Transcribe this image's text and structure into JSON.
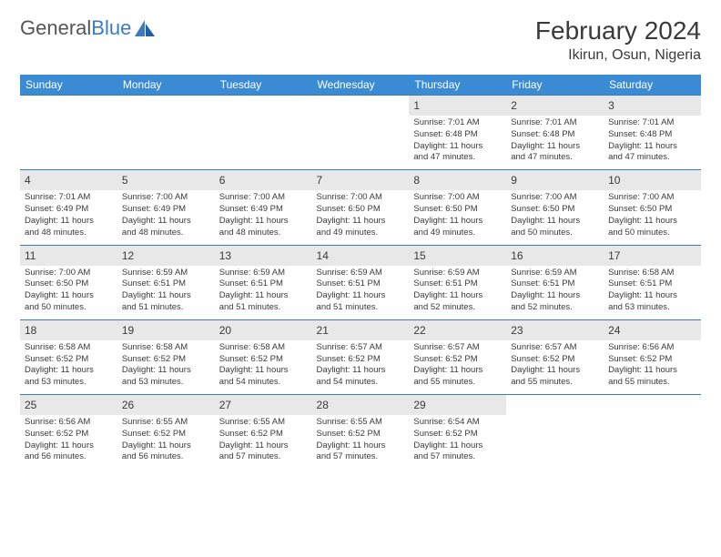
{
  "logo": {
    "first": "General",
    "second": "Blue"
  },
  "title": "February 2024",
  "location": "Ikirun, Osun, Nigeria",
  "colors": {
    "header_bg": "#3b8bd4",
    "header_text": "#ffffff",
    "row_border": "#3b7bbf",
    "daynum_bg": "#e8e8e8",
    "text": "#3a3a3a",
    "logo_gray": "#555555",
    "logo_blue": "#3b7bbf",
    "page_bg": "#ffffff"
  },
  "day_headers": [
    "Sunday",
    "Monday",
    "Tuesday",
    "Wednesday",
    "Thursday",
    "Friday",
    "Saturday"
  ],
  "weeks": [
    [
      {
        "blank": true
      },
      {
        "blank": true
      },
      {
        "blank": true
      },
      {
        "blank": true
      },
      {
        "n": "1",
        "sr": "Sunrise: 7:01 AM",
        "ss": "Sunset: 6:48 PM",
        "dl1": "Daylight: 11 hours",
        "dl2": "and 47 minutes."
      },
      {
        "n": "2",
        "sr": "Sunrise: 7:01 AM",
        "ss": "Sunset: 6:48 PM",
        "dl1": "Daylight: 11 hours",
        "dl2": "and 47 minutes."
      },
      {
        "n": "3",
        "sr": "Sunrise: 7:01 AM",
        "ss": "Sunset: 6:48 PM",
        "dl1": "Daylight: 11 hours",
        "dl2": "and 47 minutes."
      }
    ],
    [
      {
        "n": "4",
        "sr": "Sunrise: 7:01 AM",
        "ss": "Sunset: 6:49 PM",
        "dl1": "Daylight: 11 hours",
        "dl2": "and 48 minutes."
      },
      {
        "n": "5",
        "sr": "Sunrise: 7:00 AM",
        "ss": "Sunset: 6:49 PM",
        "dl1": "Daylight: 11 hours",
        "dl2": "and 48 minutes."
      },
      {
        "n": "6",
        "sr": "Sunrise: 7:00 AM",
        "ss": "Sunset: 6:49 PM",
        "dl1": "Daylight: 11 hours",
        "dl2": "and 48 minutes."
      },
      {
        "n": "7",
        "sr": "Sunrise: 7:00 AM",
        "ss": "Sunset: 6:50 PM",
        "dl1": "Daylight: 11 hours",
        "dl2": "and 49 minutes."
      },
      {
        "n": "8",
        "sr": "Sunrise: 7:00 AM",
        "ss": "Sunset: 6:50 PM",
        "dl1": "Daylight: 11 hours",
        "dl2": "and 49 minutes."
      },
      {
        "n": "9",
        "sr": "Sunrise: 7:00 AM",
        "ss": "Sunset: 6:50 PM",
        "dl1": "Daylight: 11 hours",
        "dl2": "and 50 minutes."
      },
      {
        "n": "10",
        "sr": "Sunrise: 7:00 AM",
        "ss": "Sunset: 6:50 PM",
        "dl1": "Daylight: 11 hours",
        "dl2": "and 50 minutes."
      }
    ],
    [
      {
        "n": "11",
        "sr": "Sunrise: 7:00 AM",
        "ss": "Sunset: 6:50 PM",
        "dl1": "Daylight: 11 hours",
        "dl2": "and 50 minutes."
      },
      {
        "n": "12",
        "sr": "Sunrise: 6:59 AM",
        "ss": "Sunset: 6:51 PM",
        "dl1": "Daylight: 11 hours",
        "dl2": "and 51 minutes."
      },
      {
        "n": "13",
        "sr": "Sunrise: 6:59 AM",
        "ss": "Sunset: 6:51 PM",
        "dl1": "Daylight: 11 hours",
        "dl2": "and 51 minutes."
      },
      {
        "n": "14",
        "sr": "Sunrise: 6:59 AM",
        "ss": "Sunset: 6:51 PM",
        "dl1": "Daylight: 11 hours",
        "dl2": "and 51 minutes."
      },
      {
        "n": "15",
        "sr": "Sunrise: 6:59 AM",
        "ss": "Sunset: 6:51 PM",
        "dl1": "Daylight: 11 hours",
        "dl2": "and 52 minutes."
      },
      {
        "n": "16",
        "sr": "Sunrise: 6:59 AM",
        "ss": "Sunset: 6:51 PM",
        "dl1": "Daylight: 11 hours",
        "dl2": "and 52 minutes."
      },
      {
        "n": "17",
        "sr": "Sunrise: 6:58 AM",
        "ss": "Sunset: 6:51 PM",
        "dl1": "Daylight: 11 hours",
        "dl2": "and 53 minutes."
      }
    ],
    [
      {
        "n": "18",
        "sr": "Sunrise: 6:58 AM",
        "ss": "Sunset: 6:52 PM",
        "dl1": "Daylight: 11 hours",
        "dl2": "and 53 minutes."
      },
      {
        "n": "19",
        "sr": "Sunrise: 6:58 AM",
        "ss": "Sunset: 6:52 PM",
        "dl1": "Daylight: 11 hours",
        "dl2": "and 53 minutes."
      },
      {
        "n": "20",
        "sr": "Sunrise: 6:58 AM",
        "ss": "Sunset: 6:52 PM",
        "dl1": "Daylight: 11 hours",
        "dl2": "and 54 minutes."
      },
      {
        "n": "21",
        "sr": "Sunrise: 6:57 AM",
        "ss": "Sunset: 6:52 PM",
        "dl1": "Daylight: 11 hours",
        "dl2": "and 54 minutes."
      },
      {
        "n": "22",
        "sr": "Sunrise: 6:57 AM",
        "ss": "Sunset: 6:52 PM",
        "dl1": "Daylight: 11 hours",
        "dl2": "and 55 minutes."
      },
      {
        "n": "23",
        "sr": "Sunrise: 6:57 AM",
        "ss": "Sunset: 6:52 PM",
        "dl1": "Daylight: 11 hours",
        "dl2": "and 55 minutes."
      },
      {
        "n": "24",
        "sr": "Sunrise: 6:56 AM",
        "ss": "Sunset: 6:52 PM",
        "dl1": "Daylight: 11 hours",
        "dl2": "and 55 minutes."
      }
    ],
    [
      {
        "n": "25",
        "sr": "Sunrise: 6:56 AM",
        "ss": "Sunset: 6:52 PM",
        "dl1": "Daylight: 11 hours",
        "dl2": "and 56 minutes."
      },
      {
        "n": "26",
        "sr": "Sunrise: 6:55 AM",
        "ss": "Sunset: 6:52 PM",
        "dl1": "Daylight: 11 hours",
        "dl2": "and 56 minutes."
      },
      {
        "n": "27",
        "sr": "Sunrise: 6:55 AM",
        "ss": "Sunset: 6:52 PM",
        "dl1": "Daylight: 11 hours",
        "dl2": "and 57 minutes."
      },
      {
        "n": "28",
        "sr": "Sunrise: 6:55 AM",
        "ss": "Sunset: 6:52 PM",
        "dl1": "Daylight: 11 hours",
        "dl2": "and 57 minutes."
      },
      {
        "n": "29",
        "sr": "Sunrise: 6:54 AM",
        "ss": "Sunset: 6:52 PM",
        "dl1": "Daylight: 11 hours",
        "dl2": "and 57 minutes."
      },
      {
        "blank": true
      },
      {
        "blank": true
      }
    ]
  ]
}
